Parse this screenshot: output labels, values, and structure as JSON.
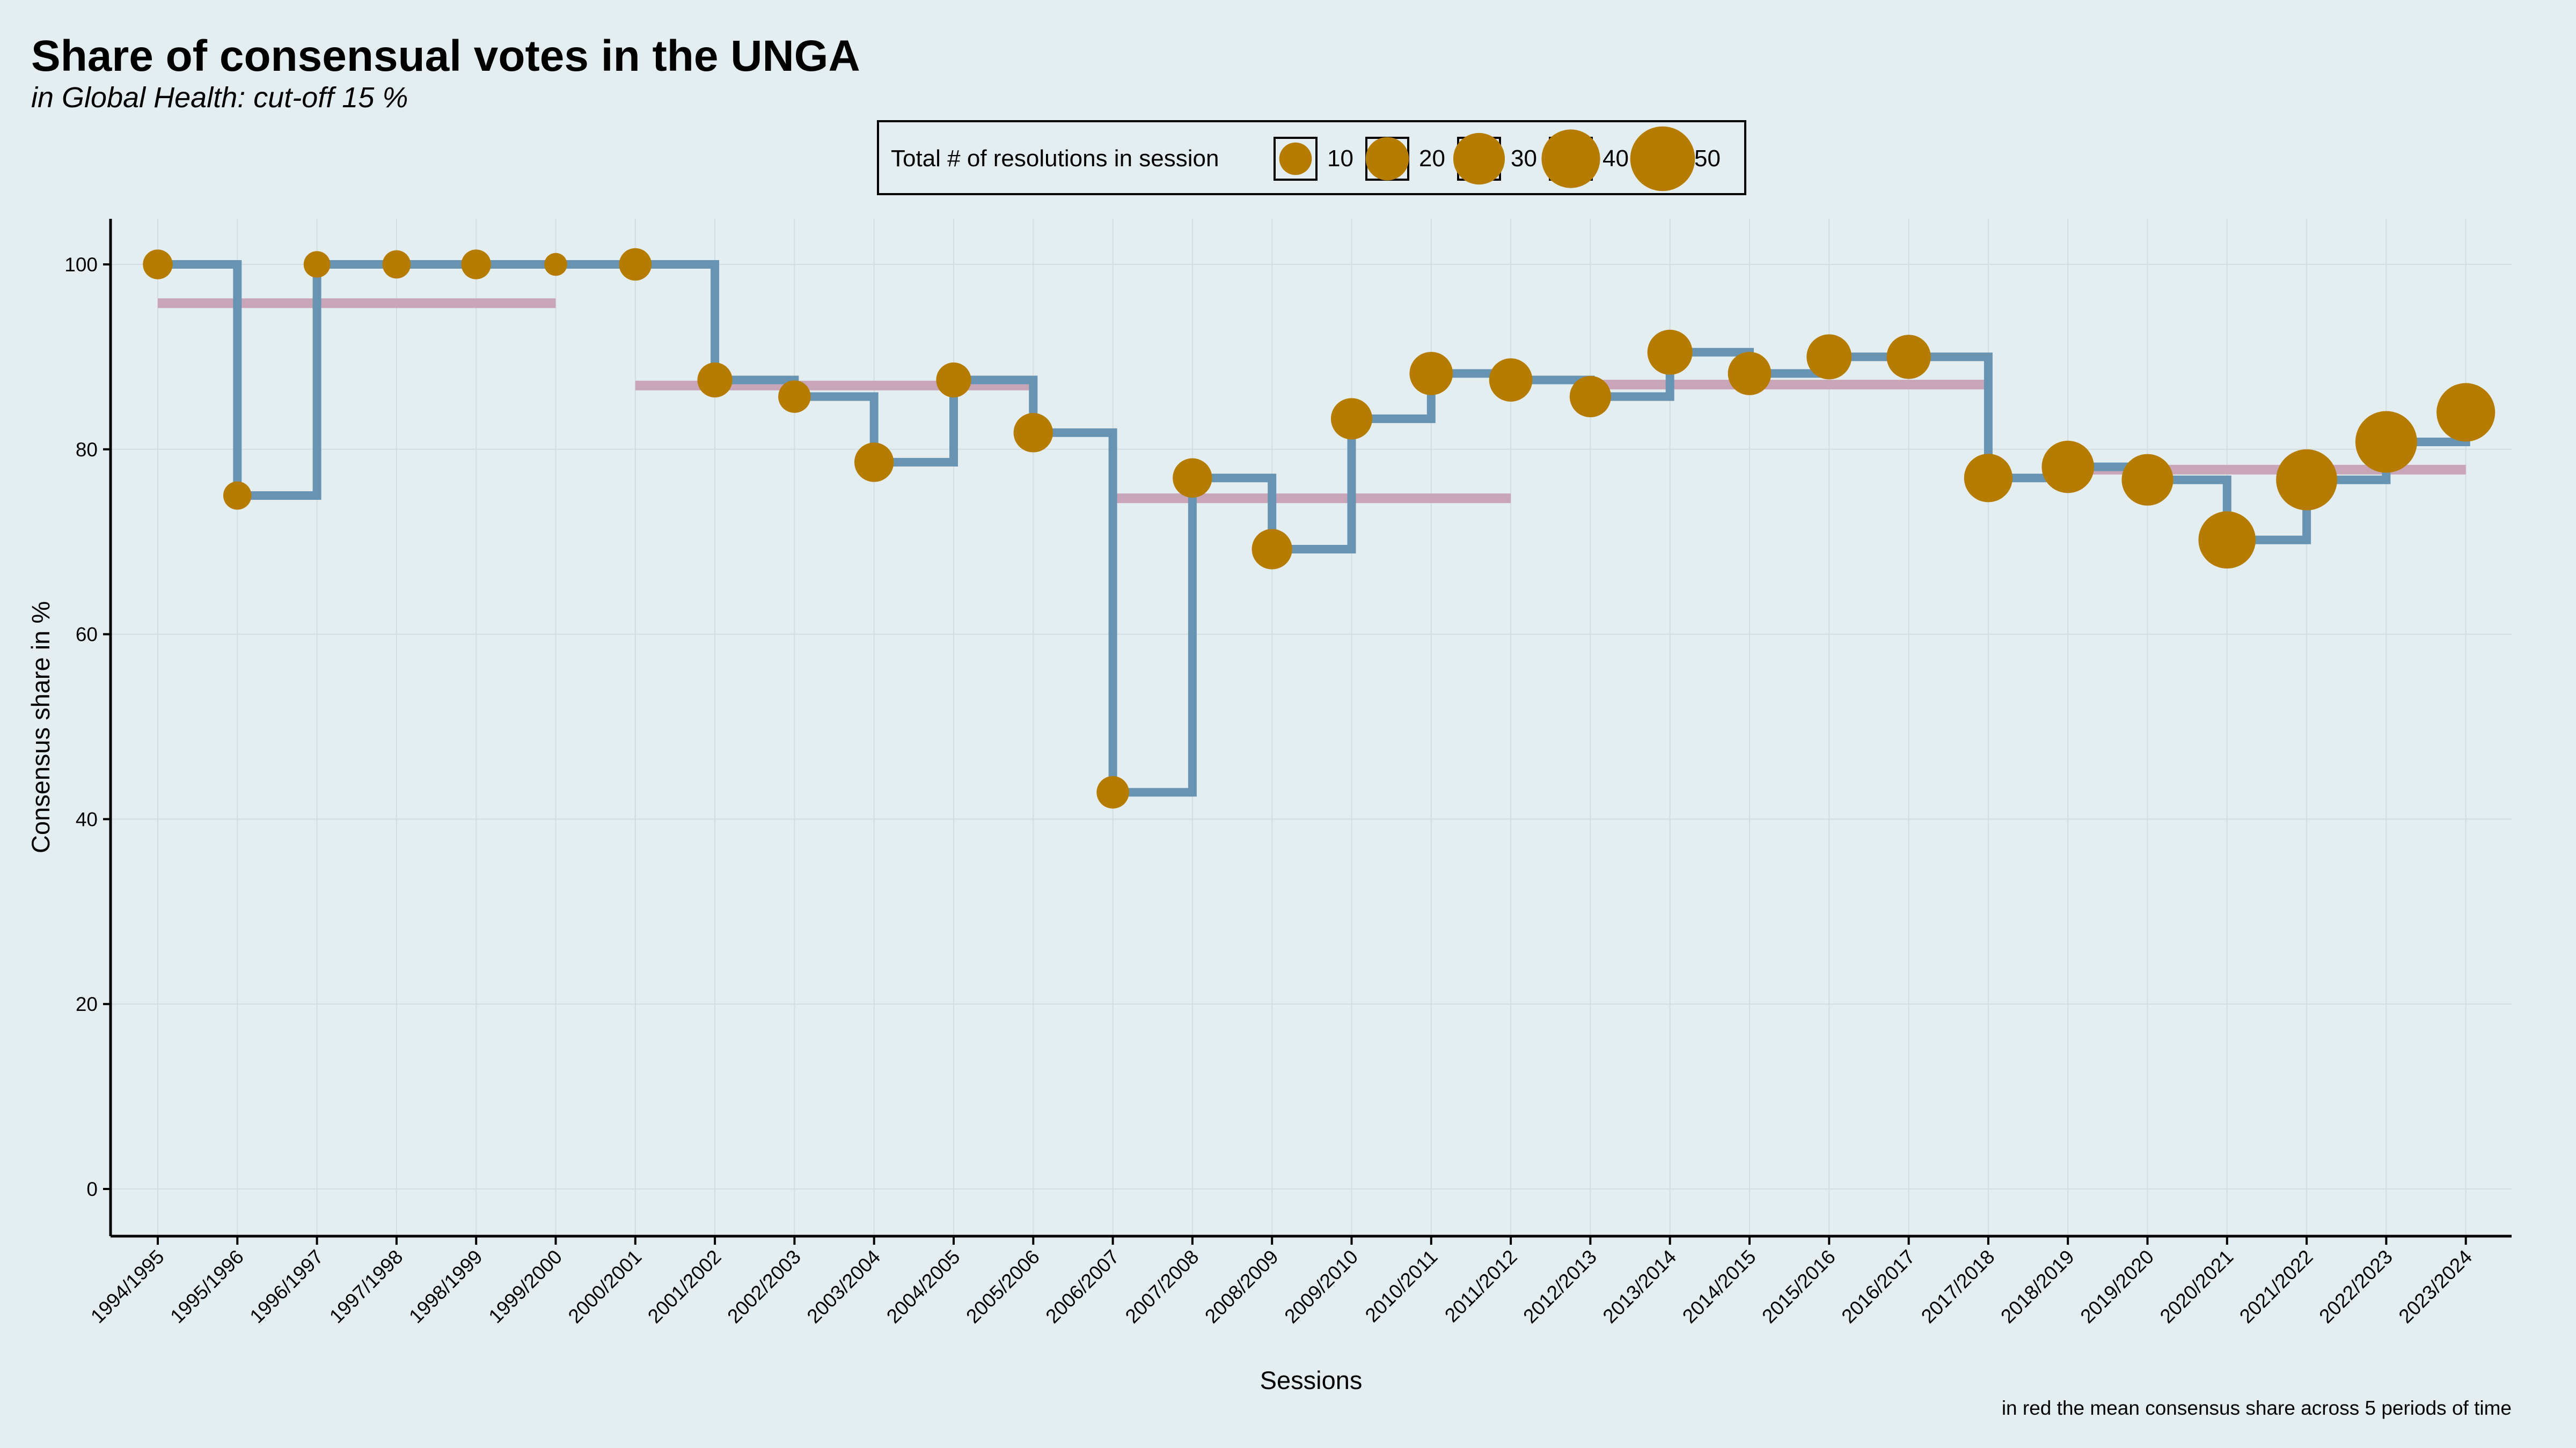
{
  "chart_data": {
    "type": "line",
    "title": "Share of consensual votes in the UNGA",
    "subtitle": "in Global Health: cut-off 15 %",
    "xlabel": "Sessions",
    "ylabel": "Consensus share in %",
    "caption": "in red the mean consensus share across 5 periods of time",
    "ylim": [
      -5,
      105
    ],
    "yticks": [
      0,
      20,
      40,
      60,
      80,
      100
    ],
    "grid": true,
    "legend": {
      "title": "Total # of resolutions in session",
      "placement": "top-center",
      "entries": [
        10,
        20,
        30,
        40,
        50
      ]
    },
    "categories": [
      "1994/1995",
      "1995/1996",
      "1996/1997",
      "1997/1998",
      "1998/1999",
      "1999/2000",
      "2000/2001",
      "2001/2002",
      "2002/2003",
      "2003/2004",
      "2004/2005",
      "2005/2006",
      "2006/2007",
      "2007/2008",
      "2008/2009",
      "2009/2010",
      "2010/2011",
      "2011/2012",
      "2012/2013",
      "2013/2014",
      "2014/2015",
      "2015/2016",
      "2016/2017",
      "2017/2018",
      "2018/2019",
      "2019/2020",
      "2020/2021",
      "2021/2022",
      "2022/2023",
      "2023/2024"
    ],
    "series": [
      {
        "values": [
          100,
          75,
          100,
          100,
          100,
          100,
          100,
          87.5,
          85.7,
          78.6,
          87.5,
          81.8,
          42.9,
          76.9,
          69.2,
          83.3,
          88.2,
          87.5,
          85.7,
          90.5,
          88.2,
          90.0,
          90.0,
          76.9,
          78.1,
          76.7,
          70.2,
          76.7,
          80.8,
          84.0
        ],
        "resolutions": [
          8,
          7,
          6,
          7,
          8,
          4,
          10,
          12,
          10,
          16,
          12,
          16,
          10,
          16,
          17,
          18,
          20,
          20,
          18,
          22,
          20,
          22,
          21,
          26,
          31,
          30,
          38,
          44,
          45,
          40
        ]
      }
    ],
    "period_means": [
      {
        "from": "1994/1995",
        "to": "1999/2000",
        "value": 95.8
      },
      {
        "from": "2000/2001",
        "to": "2005/2006",
        "value": 86.9
      },
      {
        "from": "2006/2007",
        "to": "2011/2012",
        "value": 74.7
      },
      {
        "from": "2012/2013",
        "to": "2017/2018",
        "value": 87.0
      },
      {
        "from": "2018/2019",
        "to": "2023/2024",
        "value": 77.8
      }
    ],
    "colors": {
      "background": "#e4edf0",
      "line": "#6894b4",
      "points": "#b57c00",
      "means": "#c9a5b8",
      "grid": "#d3dde1"
    }
  }
}
